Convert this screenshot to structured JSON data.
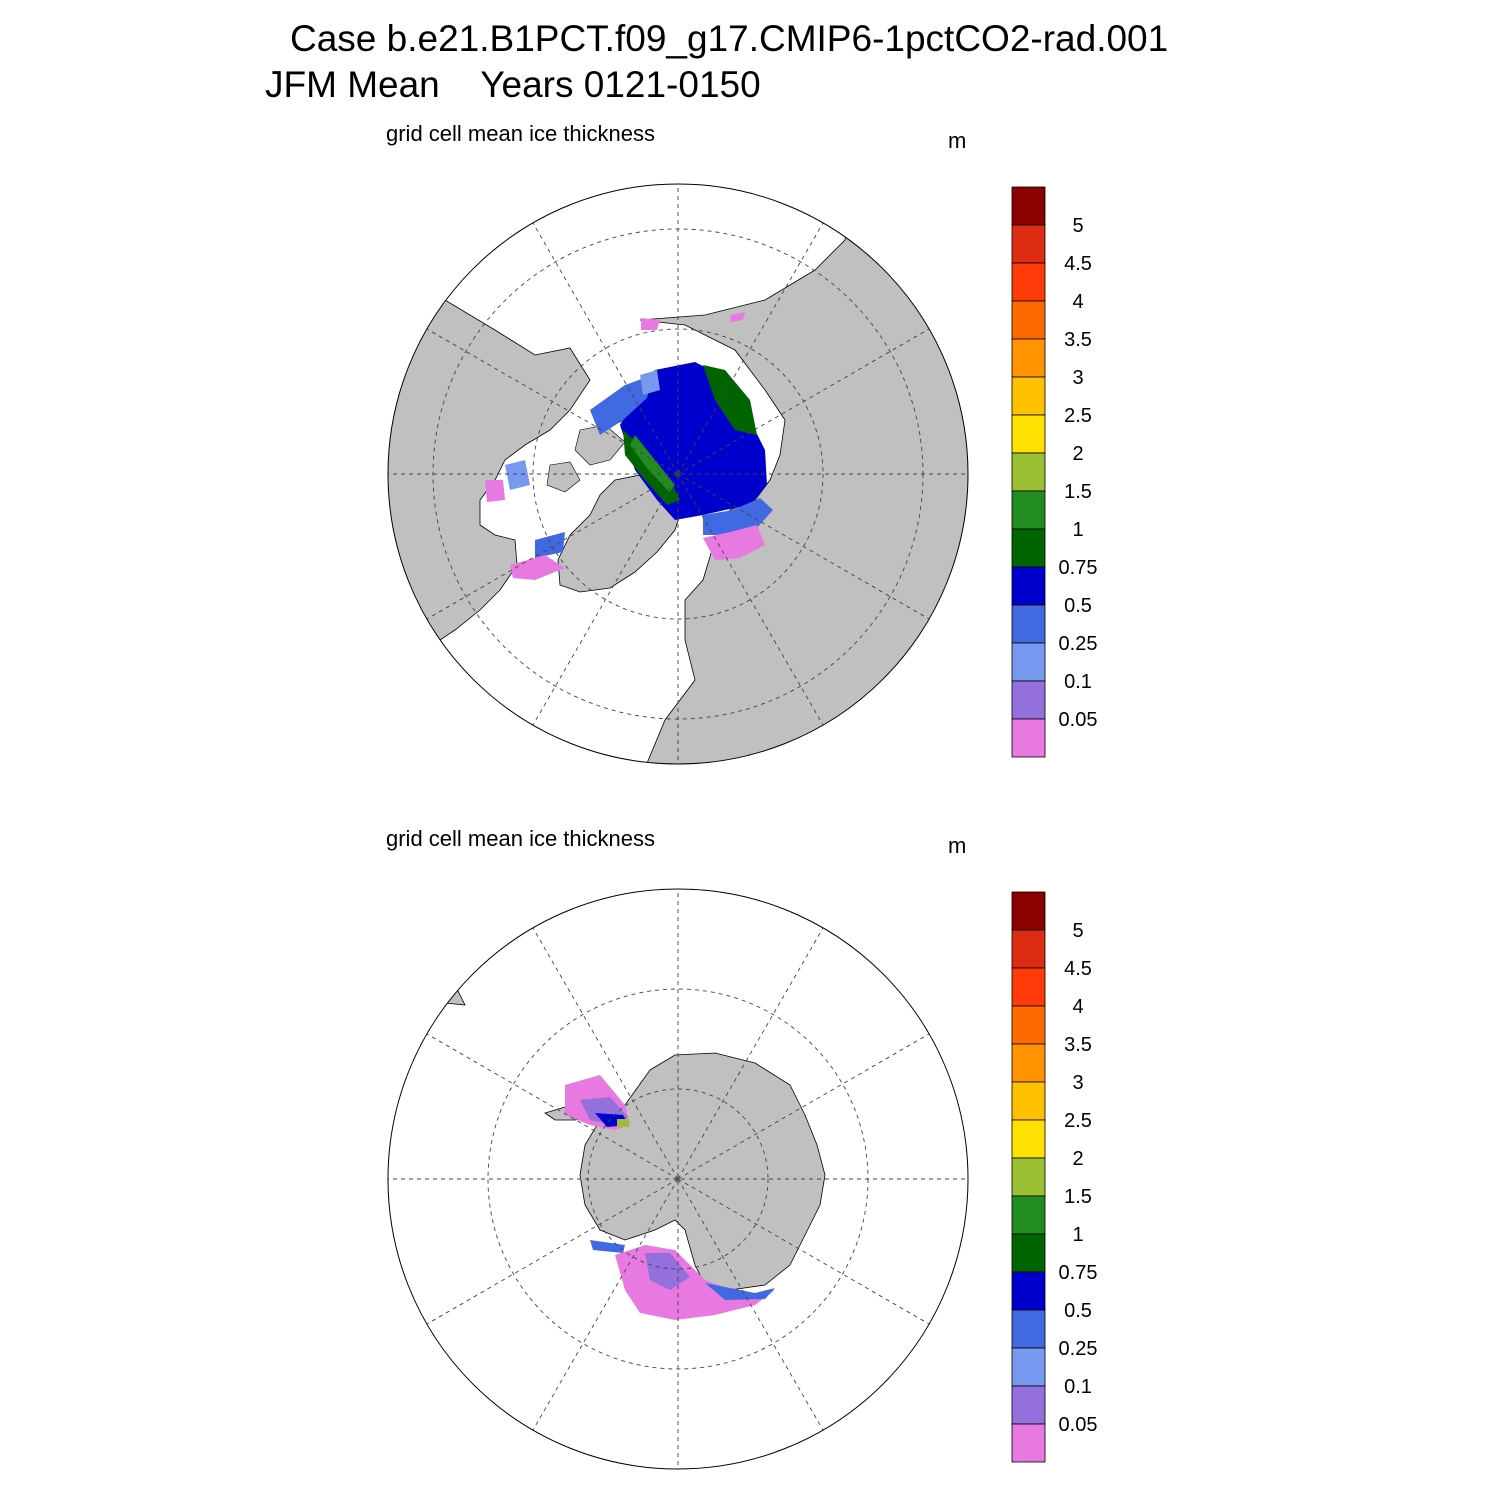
{
  "header": {
    "line1": "Case b.e21.B1PCT.f09_g17.CMIP6-1pctCO2-rad.001",
    "line2": "JFM Mean    Years 0121-0150"
  },
  "panels": [
    {
      "id": "north",
      "subtitle": "grid cell mean ice thickness",
      "units": "m"
    },
    {
      "id": "south",
      "subtitle": "grid cell mean ice thickness",
      "units": "m"
    }
  ],
  "colorbar": {
    "labels": [
      "5",
      "4.5",
      "4",
      "3.5",
      "3",
      "2.5",
      "2",
      "1.5",
      "1",
      "0.75",
      "0.5",
      "0.25",
      "0.1",
      "0.05"
    ],
    "colors": [
      "#8b0000",
      "#dd2c12",
      "#ff3b0a",
      "#ff6a00",
      "#ff9400",
      "#ffc000",
      "#ffe100",
      "#9abf32",
      "#228b22",
      "#006400",
      "#0000cd",
      "#4169e1",
      "#7799f0",
      "#9370db",
      "#e879e0"
    ]
  },
  "map_colors": {
    "land": "#c0c0c0",
    "ocean": "#ffffff"
  }
}
